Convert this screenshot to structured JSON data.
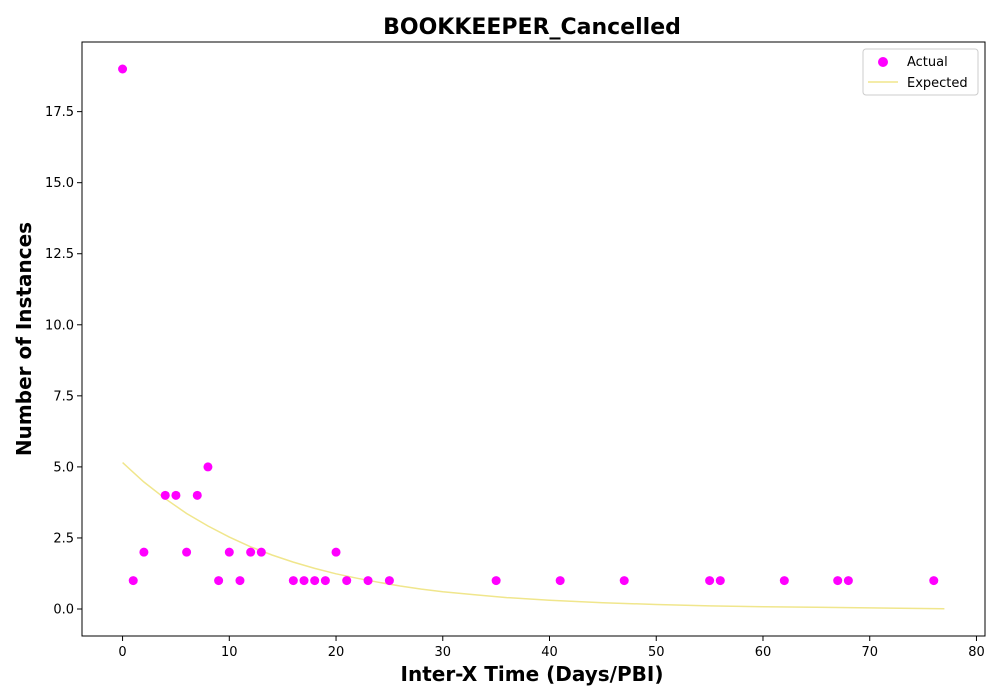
{
  "chart_data": {
    "type": "scatter",
    "title": "BOOKKEEPER_Cancelled",
    "xlabel": "Inter-X Time (Days/PBI)",
    "ylabel": "Number of Instances",
    "xlim": [
      -3.8,
      80.8
    ],
    "ylim": [
      -0.95,
      19.95
    ],
    "x_ticks": [
      0,
      10,
      20,
      30,
      40,
      50,
      60,
      70,
      80
    ],
    "y_ticks": [
      0.0,
      2.5,
      5.0,
      7.5,
      10.0,
      12.5,
      15.0,
      17.5
    ],
    "x_tick_labels": [
      "0",
      "10",
      "20",
      "30",
      "40",
      "50",
      "60",
      "70",
      "80"
    ],
    "y_tick_labels": [
      "0.0",
      "2.5",
      "5.0",
      "7.5",
      "10.0",
      "12.5",
      "15.0",
      "17.5"
    ],
    "grid": false,
    "legend_position": "top-right",
    "series": [
      {
        "name": "Actual",
        "kind": "scatter",
        "color": "#ff00ff",
        "points": [
          [
            0,
            19
          ],
          [
            1,
            1
          ],
          [
            2,
            2
          ],
          [
            4,
            4
          ],
          [
            5,
            4
          ],
          [
            6,
            2
          ],
          [
            7,
            4
          ],
          [
            8,
            5
          ],
          [
            9,
            1
          ],
          [
            10,
            2
          ],
          [
            11,
            1
          ],
          [
            12,
            2
          ],
          [
            13,
            2
          ],
          [
            16,
            1
          ],
          [
            17,
            1
          ],
          [
            18,
            1
          ],
          [
            19,
            1
          ],
          [
            20,
            2
          ],
          [
            21,
            1
          ],
          [
            23,
            1
          ],
          [
            25,
            1
          ],
          [
            35,
            1
          ],
          [
            41,
            1
          ],
          [
            47,
            1
          ],
          [
            55,
            1
          ],
          [
            56,
            1
          ],
          [
            62,
            1
          ],
          [
            67,
            1
          ],
          [
            68,
            1
          ],
          [
            76,
            1
          ]
        ]
      },
      {
        "name": "Expected",
        "kind": "line",
        "color": "#f0e68c",
        "points": [
          [
            0,
            5.15
          ],
          [
            2,
            4.47
          ],
          [
            4,
            3.88
          ],
          [
            6,
            3.36
          ],
          [
            8,
            2.92
          ],
          [
            10,
            2.53
          ],
          [
            12,
            2.19
          ],
          [
            14,
            1.9
          ],
          [
            16,
            1.65
          ],
          [
            18,
            1.43
          ],
          [
            20,
            1.24
          ],
          [
            22,
            1.08
          ],
          [
            24,
            0.94
          ],
          [
            26,
            0.81
          ],
          [
            28,
            0.7
          ],
          [
            30,
            0.61
          ],
          [
            33,
            0.5
          ],
          [
            36,
            0.4
          ],
          [
            40,
            0.31
          ],
          [
            45,
            0.22
          ],
          [
            50,
            0.16
          ],
          [
            55,
            0.11
          ],
          [
            60,
            0.08
          ],
          [
            65,
            0.06
          ],
          [
            70,
            0.04
          ],
          [
            77,
            0.01
          ]
        ]
      }
    ]
  }
}
